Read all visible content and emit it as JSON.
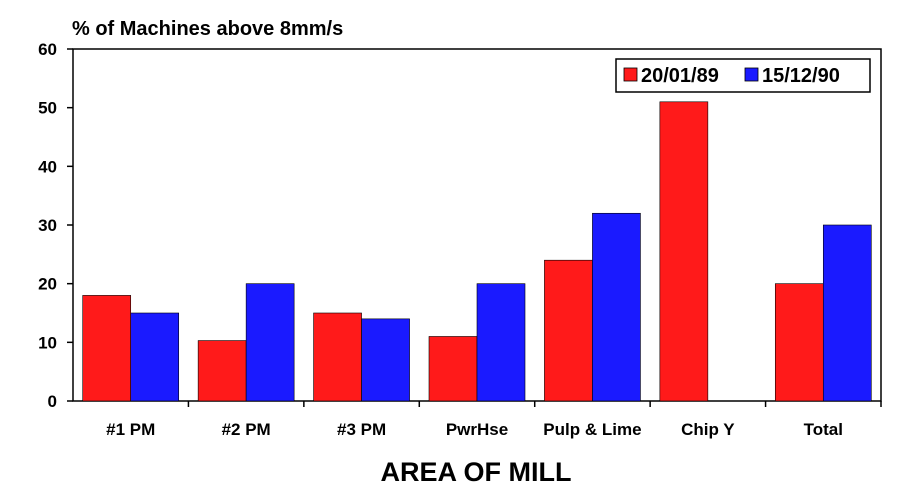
{
  "chart_data": {
    "type": "bar",
    "title": "% of Machines above 8mm/s",
    "xlabel": "AREA OF MILL",
    "ylabel": "",
    "ylim": [
      0,
      60
    ],
    "yticks": [
      0,
      10,
      20,
      30,
      40,
      50,
      60
    ],
    "grid": false,
    "legend_position": "top-right",
    "categories": [
      "#1 PM",
      "#2 PM",
      "#3 PM",
      "PwrHse",
      "Pulp & Lime",
      "Chip Y",
      "Total"
    ],
    "series": [
      {
        "name": "20/01/89",
        "color": "#ff1a1a",
        "values": [
          18,
          10.3,
          15,
          11,
          24,
          51,
          20
        ]
      },
      {
        "name": "15/12/90",
        "color": "#1a1aff",
        "values": [
          15,
          20,
          14,
          20,
          32,
          0,
          30
        ]
      }
    ]
  }
}
